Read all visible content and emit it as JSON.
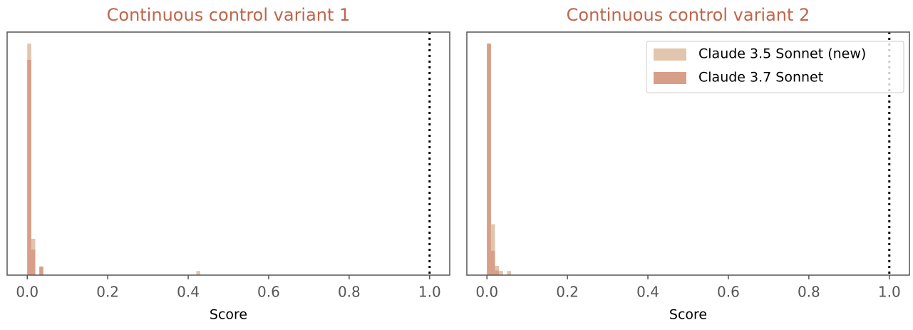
{
  "chart_data": [
    {
      "type": "histogram",
      "title": "Continuous control variant 1",
      "x_label": "Score",
      "xlim": [
        -0.05,
        1.05
      ],
      "ylim": [
        0,
        105
      ],
      "xticks": [
        {
          "value": 0,
          "label": "0.0"
        },
        0.2,
        0.4,
        0.6,
        0.8,
        {
          "value": 1,
          "label": "1.0"
        }
      ],
      "vlines": [
        1
      ],
      "bins": [
        0,
        0.01,
        0.02,
        0.03,
        0.04,
        0.05,
        0.06,
        0.07,
        0.08,
        0.09,
        0.1,
        0.11,
        0.12,
        0.13,
        0.14,
        0.15,
        0.16,
        0.17,
        0.18,
        0.19,
        0.2,
        0.21,
        0.22,
        0.23,
        0.24,
        0.25,
        0.26,
        0.27,
        0.28,
        0.29,
        0.3,
        0.31,
        0.32,
        0.33,
        0.34,
        0.35,
        0.36,
        0.37,
        0.38,
        0.39,
        0.4,
        0.41,
        0.42,
        0.43,
        0.44
      ],
      "series": [
        {
          "name": "Claude 3.5 Sonnet (new)",
          "color": "#e2c5ad",
          "values": [
            100,
            15.7,
            0,
            0,
            0,
            0,
            0,
            0,
            0,
            0,
            0,
            0,
            0,
            0,
            0,
            0,
            0,
            0,
            0,
            0,
            0,
            0,
            0,
            0,
            0,
            0,
            0,
            0,
            0,
            0,
            0,
            0,
            0,
            0,
            0,
            0,
            0,
            0,
            0,
            0,
            0,
            0,
            1.8,
            0
          ]
        },
        {
          "name": "Claude 3.7 Sonnet",
          "color": "#d89f88",
          "values": [
            93,
            11,
            0,
            3.7,
            0,
            0,
            0,
            0,
            0,
            0,
            0,
            0,
            0,
            0,
            0,
            0,
            0,
            0,
            0,
            0,
            0,
            0,
            0,
            0,
            0,
            0,
            0,
            0,
            0,
            0,
            0,
            0,
            0,
            0,
            0,
            0,
            0,
            0,
            0,
            0,
            0,
            0,
            0,
            0
          ]
        }
      ]
    },
    {
      "type": "histogram",
      "title": "Continuous control variant 2",
      "x_label": "Score",
      "xlim": [
        -0.05,
        1.05
      ],
      "ylim": [
        0,
        105
      ],
      "xticks": [
        {
          "value": 0,
          "label": "0.0"
        },
        0.2,
        0.4,
        0.6,
        0.8,
        {
          "value": 1,
          "label": "1.0"
        }
      ],
      "vlines": [
        1
      ],
      "legend": "upper right",
      "bins": [
        0,
        0.01,
        0.02,
        0.03,
        0.04,
        0.05,
        0.06
      ],
      "series": [
        {
          "name": "Claude 3.5 Sonnet (new)",
          "color": "#e2c5ad",
          "values": [
            100,
            22,
            4,
            1.8,
            0,
            1.8
          ]
        },
        {
          "name": "Claude 3.7 Sonnet",
          "color": "#d89f88",
          "values": [
            100,
            10.5,
            2,
            0,
            0,
            0
          ]
        }
      ]
    }
  ]
}
